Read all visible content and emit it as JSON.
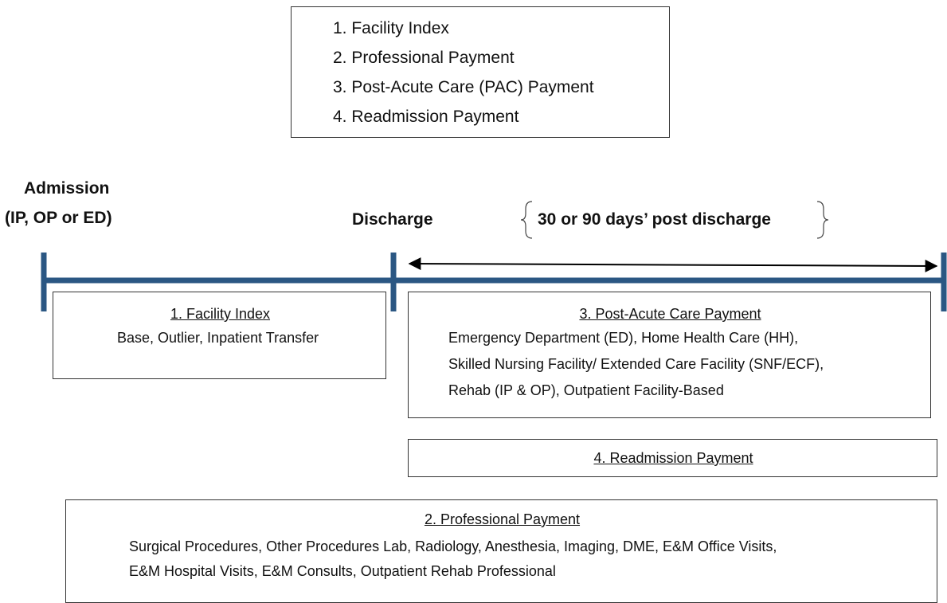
{
  "legend": {
    "items": [
      "1.  Facility Index",
      "2.  Professional Payment",
      "3.  Post-Acute Care (PAC) Payment",
      "4.  Readmission Payment"
    ]
  },
  "timeline": {
    "admission": [
      "Admission",
      "(IP, OP or ED)"
    ],
    "discharge": "Discharge",
    "window": "30 or 90 days’ post discharge"
  },
  "boxes": {
    "facility": {
      "title": "1. Facility Index",
      "lines": [
        "Base, Outlier, Inpatient Transfer"
      ]
    },
    "pac": {
      "title": "3. Post-Acute Care Payment",
      "lines": [
        "Emergency Department (ED), Home Health Care (HH),",
        "Skilled Nursing Facility/ Extended Care Facility (SNF/ECF),",
        "Rehab (IP & OP), Outpatient Facility-Based"
      ]
    },
    "readmission": {
      "title": "4. Readmission Payment"
    },
    "professional": {
      "title": "2. Professional Payment",
      "lines": [
        "Surgical Procedures, Other Procedures Lab, Radiology, Anesthesia, Imaging, DME, E&M Office Visits,",
        "E&M Hospital Visits, E&M Consults, Outpatient Rehab Professional"
      ]
    }
  }
}
